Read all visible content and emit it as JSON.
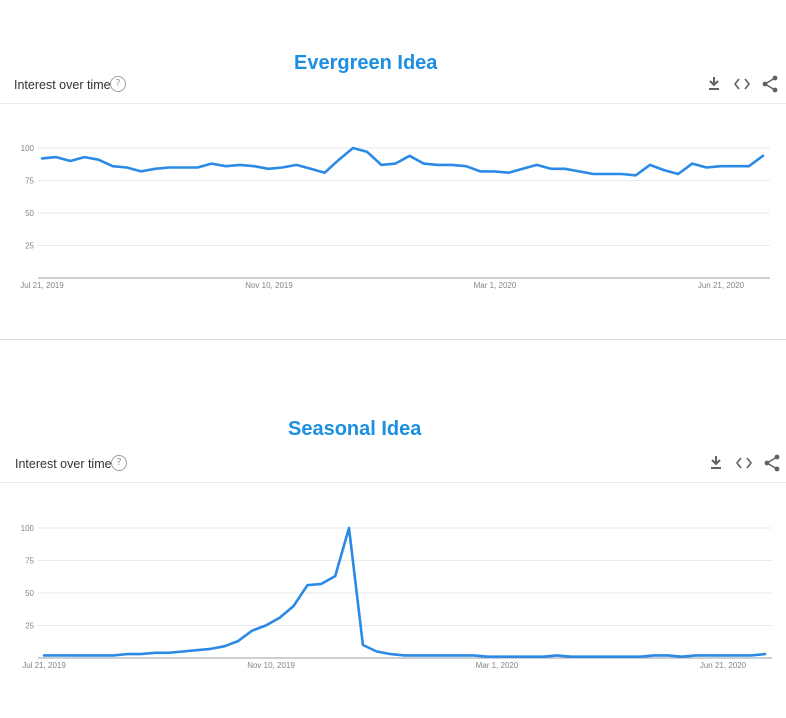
{
  "panels": [
    {
      "big_title": "Evergreen Idea",
      "card_title": "Interest over time",
      "help_glyph": "?",
      "icons": [
        "download-icon",
        "embed-code-icon",
        "share-icon"
      ]
    },
    {
      "big_title": "Seasonal Idea",
      "card_title": "Interest over time",
      "help_glyph": "?",
      "icons": [
        "download-icon",
        "embed-code-icon",
        "share-icon"
      ]
    }
  ],
  "colors": {
    "title": "#1a8fe3",
    "line": "#2b8ae6",
    "grid": "#e8eaed",
    "axis": "#9aa0a6"
  },
  "chart_data": [
    {
      "type": "line",
      "title": "Evergreen Idea",
      "xlabel": "",
      "ylabel": "",
      "x_tick_labels": [
        "Jul 21, 2019",
        "Nov 10, 2019",
        "Mar 1, 2020",
        "Jun 21, 2020"
      ],
      "y_ticks": [
        25,
        50,
        75,
        100
      ],
      "ylim": [
        0,
        100
      ],
      "grid": true,
      "series": [
        {
          "values": [
            92,
            93,
            90,
            93,
            91,
            86,
            85,
            82,
            84,
            85,
            85,
            85,
            88,
            86,
            87,
            86,
            84,
            85,
            87,
            84,
            81,
            91,
            100,
            97,
            87,
            88,
            94,
            88,
            87,
            87,
            86,
            82,
            82,
            81,
            84,
            87,
            84,
            84,
            82,
            80,
            80,
            80,
            79,
            87,
            83,
            80,
            88,
            85,
            86,
            86,
            86,
            94
          ]
        }
      ]
    },
    {
      "type": "line",
      "title": "Seasonal Idea",
      "xlabel": "",
      "ylabel": "",
      "x_tick_labels": [
        "Jul 21, 2019",
        "Nov 10, 2019",
        "Mar 1, 2020",
        "Jun 21, 2020"
      ],
      "y_ticks": [
        25,
        50,
        75,
        100
      ],
      "ylim": [
        0,
        100
      ],
      "grid": true,
      "series": [
        {
          "values": [
            2,
            2,
            2,
            2,
            2,
            2,
            3,
            3,
            4,
            4,
            5,
            6,
            7,
            9,
            13,
            21,
            25,
            31,
            40,
            56,
            57,
            63,
            100,
            10,
            5,
            3,
            2,
            2,
            2,
            2,
            2,
            2,
            1,
            1,
            1,
            1,
            1,
            2,
            1,
            1,
            1,
            1,
            1,
            1,
            2,
            2,
            1,
            2,
            2,
            2,
            2,
            2,
            3
          ]
        }
      ]
    }
  ]
}
